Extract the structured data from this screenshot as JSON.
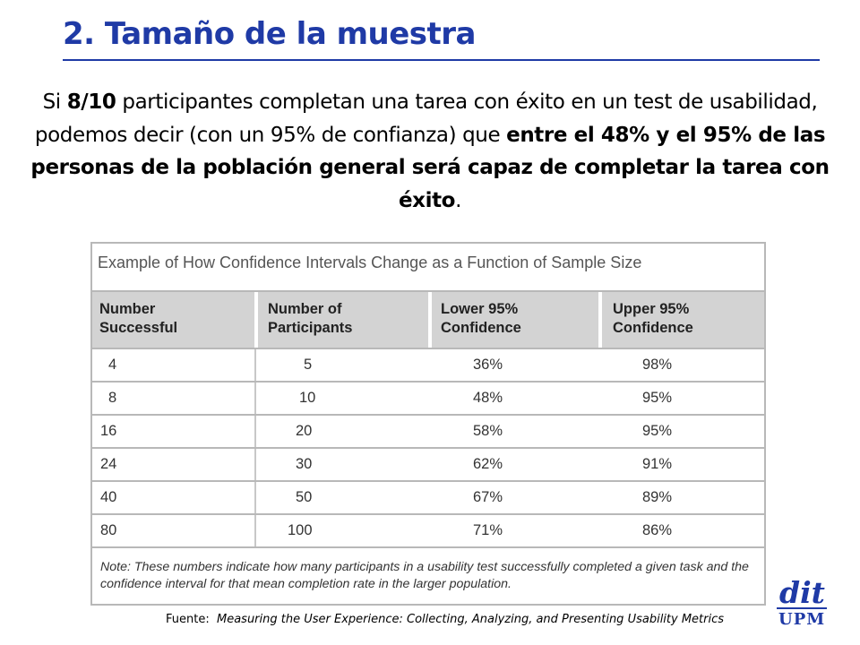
{
  "slide": {
    "title": "2. Tamaño de la muestra",
    "paragraph": {
      "p1": "Si ",
      "b1": "8/10",
      "p2": " participantes completan una tarea con éxito en un test de usabilidad, podemos decir (con un 95% de confianza) que ",
      "b2": "entre el 48% y el 95% de las personas de la población general será capaz de completar la tarea con éxito",
      "p3": "."
    }
  },
  "table": {
    "caption": "Example of How Confidence Intervals Change as a Function of Sample Size",
    "headers": [
      [
        "Number",
        "Successful"
      ],
      [
        "Number of",
        "Participants"
      ],
      [
        "Lower 95%",
        "Confidence"
      ],
      [
        "Upper 95%",
        "Confidence"
      ]
    ],
    "rows": [
      [
        "4",
        "5",
        "36%",
        "98%"
      ],
      [
        "8",
        "10",
        "48%",
        "95%"
      ],
      [
        "16",
        "20",
        "58%",
        "95%"
      ],
      [
        "24",
        "30",
        "62%",
        "91%"
      ],
      [
        "40",
        "50",
        "67%",
        "89%"
      ],
      [
        "80",
        "100",
        "71%",
        "86%"
      ]
    ],
    "note_label": "Note:",
    "note_text": " These numbers indicate how many participants in a usability test successfully completed a given task and the confidence interval for that mean completion rate in the larger population."
  },
  "source": {
    "label": "Fuente:",
    "text": "Measuring the User Experience: Collecting, Analyzing, and Presenting Usability Metrics"
  },
  "logo": {
    "top": "dit",
    "bottom": "UPM",
    "color": "#1f3aa6"
  }
}
